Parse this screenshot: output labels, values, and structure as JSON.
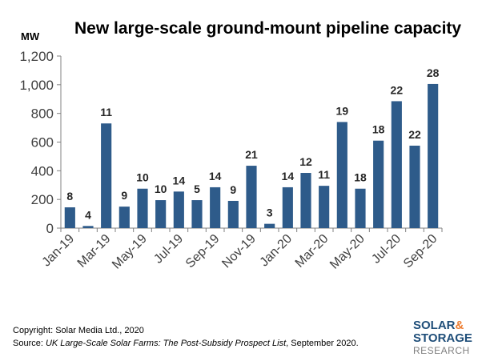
{
  "chart_data": {
    "type": "bar",
    "title": "New large-scale ground-mount pipeline capacity",
    "ylabel": "MW",
    "ylim": [
      0,
      1200
    ],
    "yticks": [
      "0",
      "200",
      "400",
      "600",
      "800",
      "1,000",
      "1,200"
    ],
    "grid": false,
    "bar_color": "#2e5b8a",
    "categories": [
      "Jan-19",
      "Feb-19",
      "Mar-19",
      "Apr-19",
      "May-19",
      "Jun-19",
      "Jul-19",
      "Aug-19",
      "Sep-19",
      "Oct-19",
      "Nov-19",
      "Dec-19",
      "Jan-20",
      "Feb-20",
      "Mar-20",
      "Apr-20",
      "May-20",
      "Jun-20",
      "Jul-20",
      "Aug-20",
      "Sep-20"
    ],
    "xtick_labels": [
      "Jan-19",
      "",
      "Mar-19",
      "",
      "May-19",
      "",
      "Jul-19",
      "",
      "Sep-19",
      "",
      "Nov-19",
      "",
      "Jan-20",
      "",
      "Mar-20",
      "",
      "May-20",
      "",
      "Jul-20",
      "",
      "Sep-20"
    ],
    "values": [
      145,
      15,
      730,
      150,
      275,
      195,
      255,
      195,
      285,
      190,
      435,
      30,
      285,
      385,
      295,
      740,
      275,
      610,
      885,
      575,
      1005
    ],
    "bar_labels": [
      "8",
      "4",
      "11",
      "9",
      "10",
      "10",
      "14",
      "5",
      "14",
      "9",
      "21",
      "3",
      "14",
      "12",
      "11",
      "19",
      "18",
      "18",
      "22",
      "22",
      "28"
    ]
  },
  "footer": {
    "copyright": "Copyright: Solar Media Ltd., 2020",
    "source_prefix": "Source: ",
    "source_title": "UK Large-Scale Solar Farms: The Post-Subsidy Prospect List",
    "source_suffix": ", September 2020."
  },
  "logo": {
    "line1": "SOLAR",
    "amp": "&",
    "line2": "STORAGE",
    "line3": "RESEARCH"
  }
}
